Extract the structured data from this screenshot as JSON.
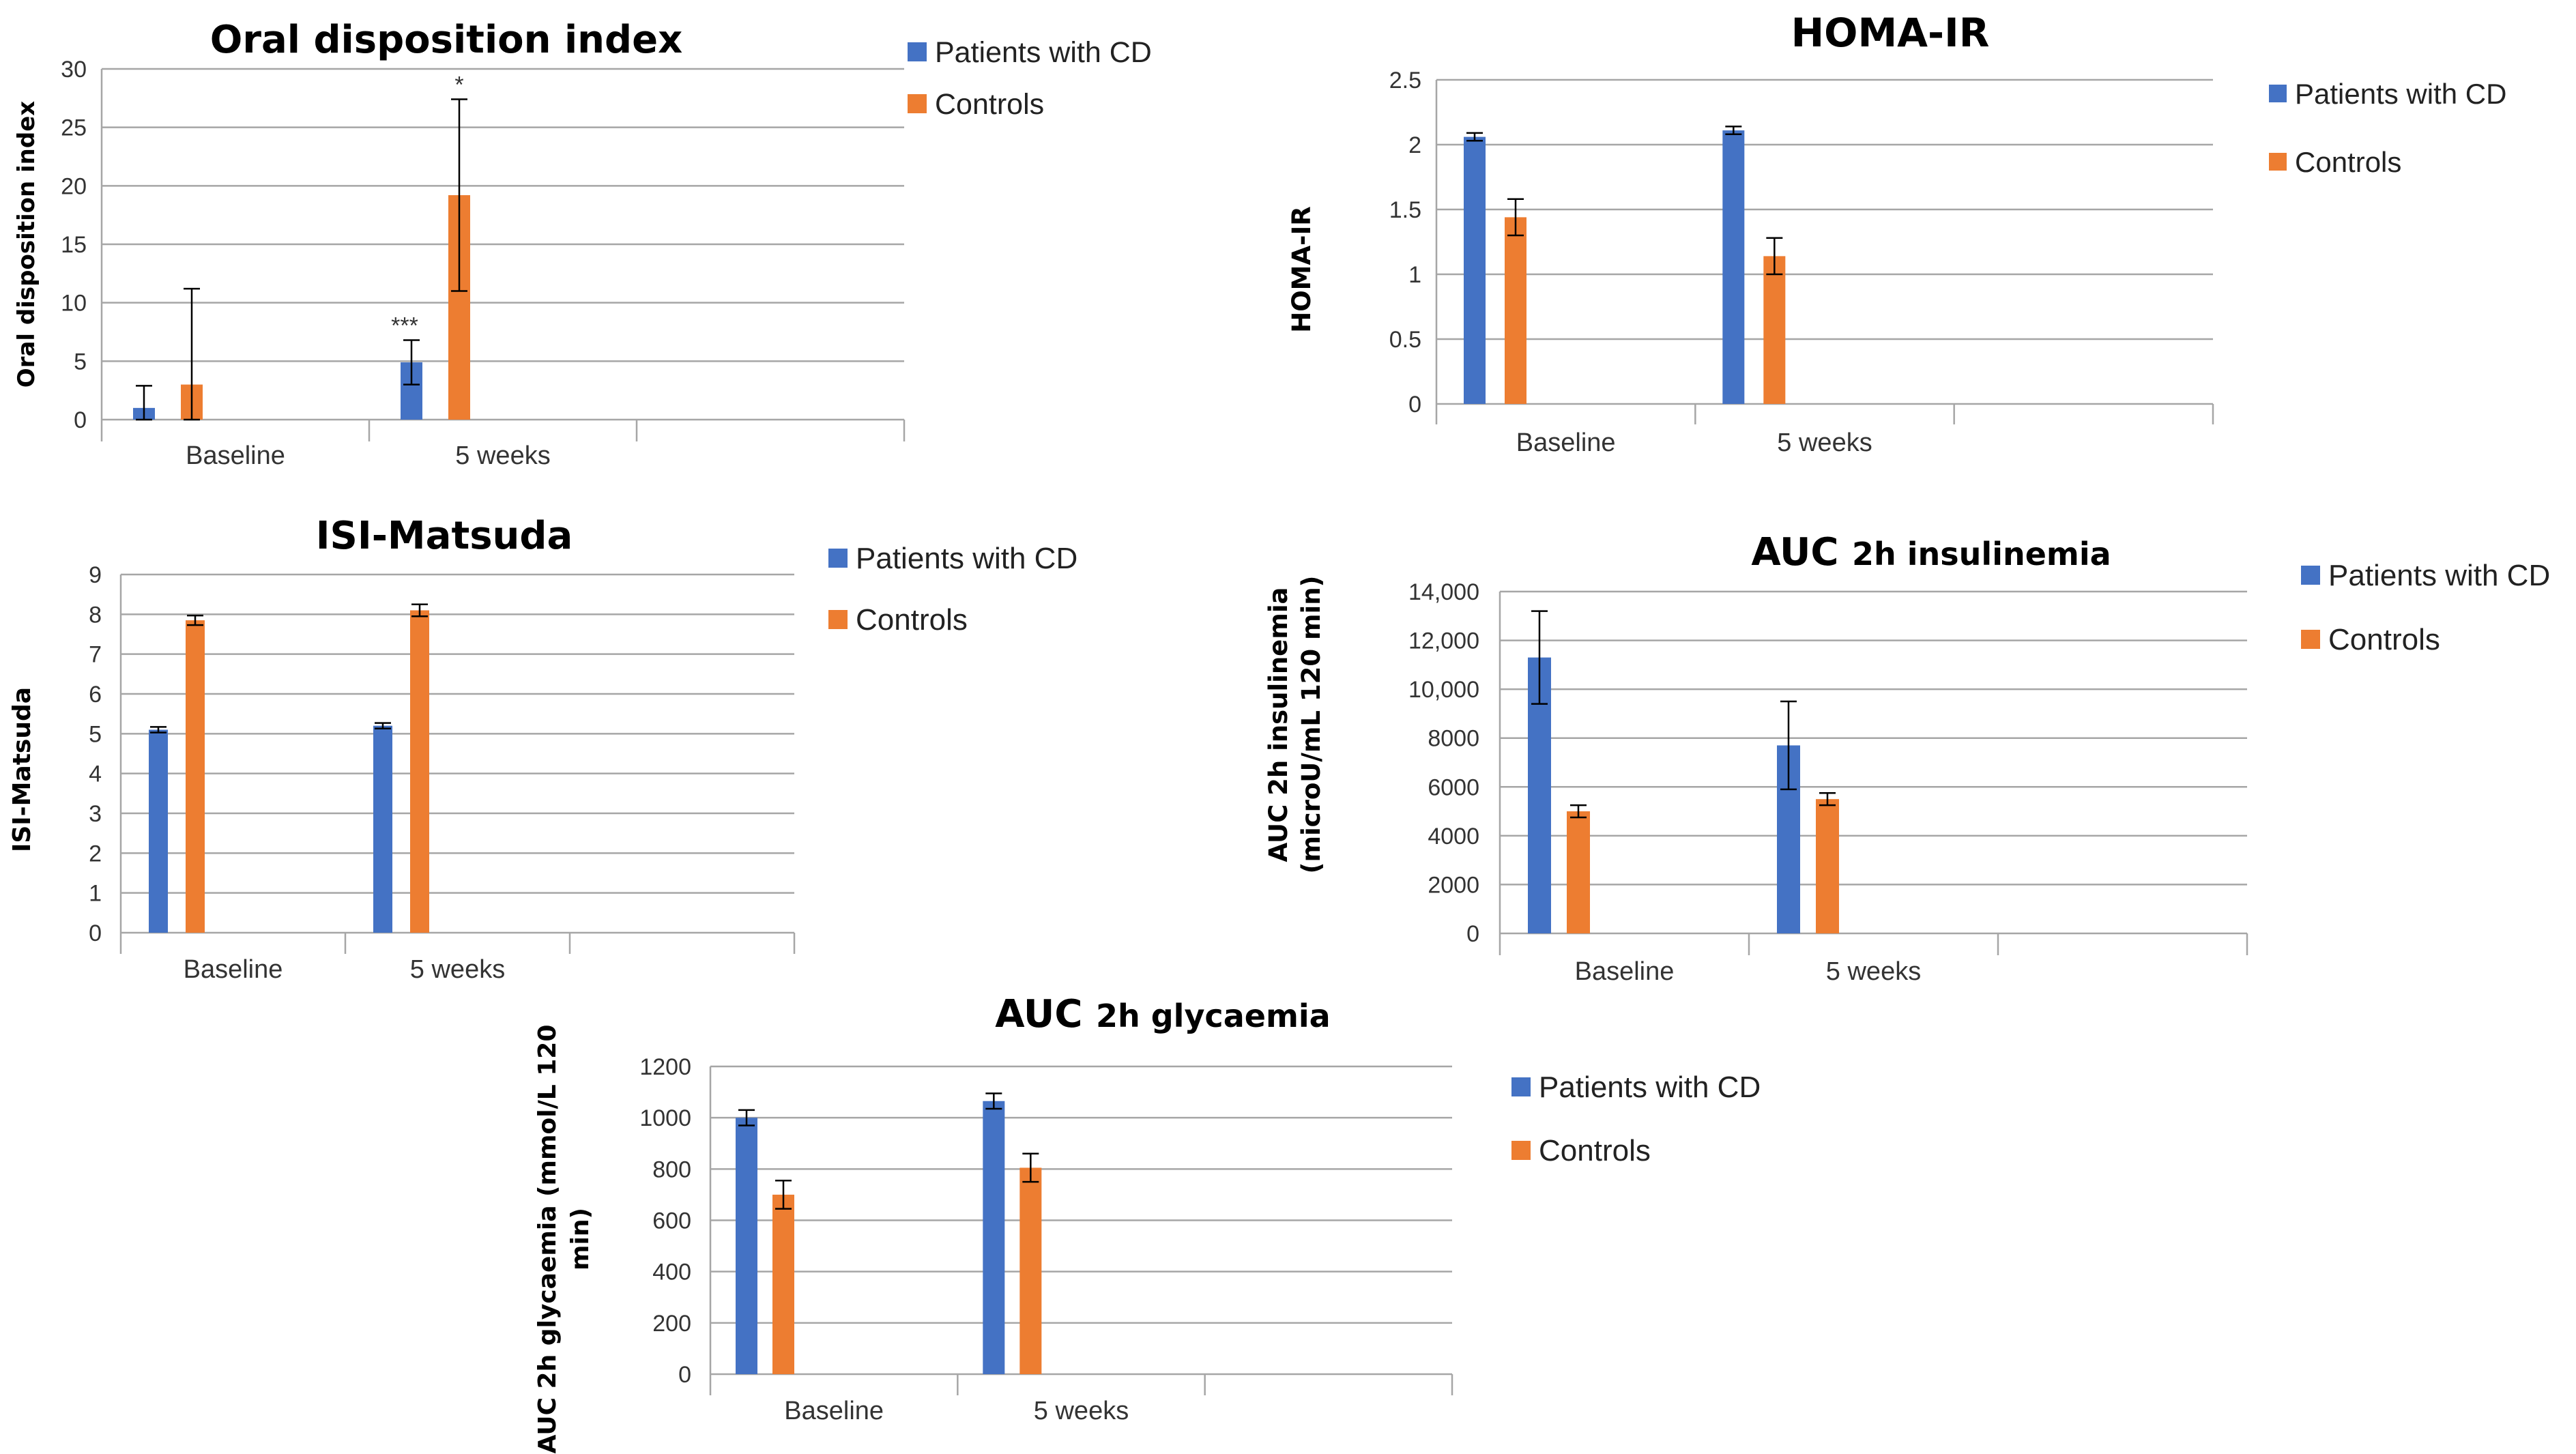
{
  "colors": {
    "patients": "#4472c4",
    "controls": "#ed7d31",
    "grid": "#a6a6a6",
    "axis": "#a6a6a6",
    "error": "#000000"
  },
  "chart_data": [
    {
      "type": "bar",
      "title": "Oral disposition index",
      "title_parts": [
        {
          "text": "Oral disposition index",
          "small": false
        }
      ],
      "ylabel": "Oral disposition index",
      "ylabel_lines": [
        "Oral disposition index"
      ],
      "xlabel": "",
      "categories": [
        "Baseline",
        "5 weeks"
      ],
      "ylim": [
        0,
        30
      ],
      "yticks": [
        0,
        5,
        10,
        15,
        20,
        25,
        30
      ],
      "ytick_labels": [
        "0",
        "5",
        "10",
        "15",
        "20",
        "25",
        "30"
      ],
      "grid": true,
      "legend": "top-right",
      "series": [
        {
          "name": "Patients with CD",
          "values": [
            1.0,
            4.9
          ],
          "errors": [
            1.9,
            1.9
          ]
        },
        {
          "name": "Controls",
          "values": [
            3.0,
            19.2
          ],
          "errors": [
            8.2,
            8.2
          ]
        }
      ],
      "annotations": [
        {
          "text": "***",
          "category": 1,
          "series": 0
        },
        {
          "text": "*",
          "category": 1,
          "series": 1
        }
      ]
    },
    {
      "type": "bar",
      "title": "HOMA-IR",
      "title_parts": [
        {
          "text": "HOMA-IR",
          "small": false
        }
      ],
      "ylabel": "HOMA-IR",
      "ylabel_lines": [
        "HOMA-IR"
      ],
      "xlabel": "",
      "categories": [
        "Baseline",
        "5 weeks"
      ],
      "ylim": [
        0,
        2.5
      ],
      "yticks": [
        0,
        0.5,
        1,
        1.5,
        2,
        2.5
      ],
      "ytick_labels": [
        "0",
        "0.5",
        "1",
        "1.5",
        "2",
        "2.5"
      ],
      "grid": true,
      "legend": "top-right",
      "series": [
        {
          "name": "Patients with CD",
          "values": [
            2.06,
            2.11
          ],
          "errors": [
            0.03,
            0.03
          ]
        },
        {
          "name": "Controls",
          "values": [
            1.44,
            1.14
          ],
          "errors": [
            0.14,
            0.14
          ]
        }
      ],
      "annotations": []
    },
    {
      "type": "bar",
      "title": "ISI-Matsuda",
      "title_parts": [
        {
          "text": "ISI-Matsuda",
          "small": false
        }
      ],
      "ylabel": "ISI-Matsuda",
      "ylabel_lines": [
        "ISI-Matsuda"
      ],
      "xlabel": "",
      "categories": [
        "Baseline",
        "5 weeks"
      ],
      "ylim": [
        0,
        9
      ],
      "yticks": [
        0,
        1,
        2,
        3,
        4,
        5,
        6,
        7,
        8,
        9
      ],
      "ytick_labels": [
        "0",
        "1",
        "2",
        "3",
        "4",
        "5",
        "6",
        "7",
        "8",
        "9"
      ],
      "grid": true,
      "legend": "top-right",
      "series": [
        {
          "name": "Patients with CD",
          "values": [
            5.1,
            5.2
          ],
          "errors": [
            0.07,
            0.07
          ]
        },
        {
          "name": "Controls",
          "values": [
            7.85,
            8.1
          ],
          "errors": [
            0.12,
            0.15
          ]
        }
      ],
      "annotations": []
    },
    {
      "type": "bar",
      "title": "AUC 2h insulinemia",
      "title_parts": [
        {
          "text": "AUC ",
          "small": false
        },
        {
          "text": "2h insulinemia",
          "small": true
        }
      ],
      "ylabel": "AUC 2h insulinemia (microU/mL 120 min)",
      "ylabel_lines": [
        "AUC 2h insulinemia",
        "(microU/mL 120 min)"
      ],
      "xlabel": "",
      "categories": [
        "Baseline",
        "5 weeks"
      ],
      "ylim": [
        0,
        14000
      ],
      "yticks": [
        0,
        2000,
        4000,
        6000,
        8000,
        10000,
        12000,
        14000
      ],
      "ytick_labels": [
        "0",
        "2000",
        "4000",
        "6000",
        "8000",
        "10,000",
        "12,000",
        "14,000"
      ],
      "grid": true,
      "legend": "top-right",
      "series": [
        {
          "name": "Patients with CD",
          "values": [
            11300,
            7700
          ],
          "errors": [
            1900,
            1800
          ]
        },
        {
          "name": "Controls",
          "values": [
            5000,
            5500
          ],
          "errors": [
            250,
            250
          ]
        }
      ],
      "annotations": []
    },
    {
      "type": "bar",
      "title": "AUC 2h glycaemia",
      "title_parts": [
        {
          "text": "AUC ",
          "small": false
        },
        {
          "text": "2h glycaemia",
          "small": true
        }
      ],
      "ylabel": "AUC 2h glycaemia (mmol/L 120 min)",
      "ylabel_lines": [
        "AUC 2h glycaemia (mmol/L 120",
        "min)"
      ],
      "xlabel": "",
      "categories": [
        "Baseline",
        "5 weeks"
      ],
      "ylim": [
        0,
        1200
      ],
      "yticks": [
        0,
        200,
        400,
        600,
        800,
        1000,
        1200
      ],
      "ytick_labels": [
        "0",
        "200",
        "400",
        "600",
        "800",
        "1000",
        "1200"
      ],
      "grid": true,
      "legend": "top-right",
      "series": [
        {
          "name": "Patients with CD",
          "values": [
            1000,
            1065
          ],
          "errors": [
            30,
            30
          ]
        },
        {
          "name": "Controls",
          "values": [
            700,
            805
          ],
          "errors": [
            55,
            55
          ]
        }
      ],
      "annotations": []
    }
  ]
}
